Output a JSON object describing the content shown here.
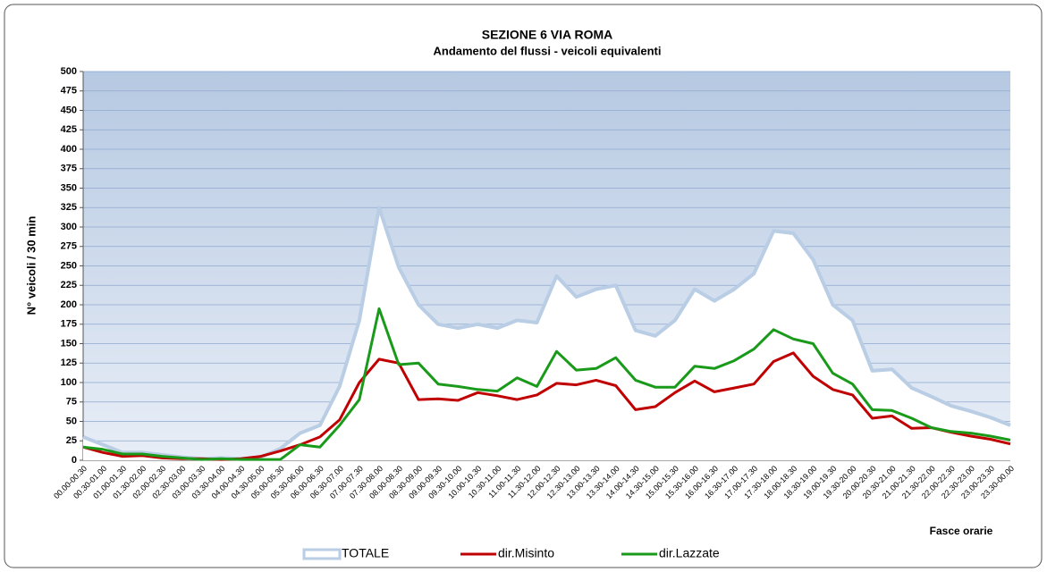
{
  "chart_data": {
    "type": "line",
    "title": "SEZIONE 6   VIA ROMA",
    "subtitle": "Andamento del flussi - veicoli equivalenti",
    "y_label": "N° veicoli / 30 min",
    "x_label": "Fasce orarie",
    "categories": [
      "00.00-00.30",
      "00.30-01.00",
      "01.00-01.30",
      "01.30-02.00",
      "02.00-02.30",
      "02.30-03.00",
      "03.00-03.30",
      "03.30-04.00",
      "04.00-04.30",
      "04.30-05.00",
      "05.00-05.30",
      "05.30-06.00",
      "06.00-06.30",
      "06.30-07.00",
      "07.00-07.30",
      "07.30-08.00",
      "08.00-08.30",
      "08.30-09.00",
      "09.00-09.30",
      "09.30-10.00",
      "10.00-10.30",
      "10.30-11.00",
      "11.00-11.30",
      "11.30-12.00",
      "12.00-12.30",
      "12.30-13.00",
      "13.00-13.30",
      "13.30-14.00",
      "14.00-14.30",
      "14.30-15.00",
      "15.00-15.30",
      "15.30-16.00",
      "16.00-16.30",
      "16.30-17.00",
      "17.00-17.30",
      "17.30-18.00",
      "18.00-18.30",
      "18.30-19.00",
      "19.00-19.30",
      "19.30-20.00",
      "20.00-20.30",
      "20.30-21.00",
      "21.00-21.30",
      "21.30-22.00",
      "22.00-22.30",
      "22.30-23.00",
      "23.00-23.30",
      "23.30-00.00"
    ],
    "series": [
      {
        "name": "TOTALE",
        "color": "#b9cde5",
        "area": true,
        "values": [
          30,
          20,
          10,
          10,
          7,
          4,
          2,
          3,
          2,
          4,
          15,
          35,
          45,
          95,
          180,
          325,
          248,
          200,
          175,
          170,
          175,
          170,
          180,
          177,
          237,
          210,
          220,
          225,
          167,
          160,
          180,
          220,
          205,
          220,
          240,
          295,
          292,
          258,
          200,
          180,
          115,
          117,
          93,
          82,
          70,
          63,
          55,
          45
        ]
      },
      {
        "name": "dir.Misinto",
        "color": "#c00000",
        "values": [
          17,
          10,
          5,
          6,
          3,
          2,
          2,
          1,
          2,
          5,
          12,
          20,
          30,
          52,
          100,
          130,
          125,
          78,
          79,
          77,
          87,
          83,
          78,
          84,
          99,
          97,
          103,
          96,
          65,
          69,
          87,
          102,
          88,
          93,
          98,
          127,
          138,
          108,
          91,
          84,
          54,
          57,
          41,
          42,
          36,
          31,
          27,
          21
        ]
      },
      {
        "name": "dir.Lazzate",
        "color": "#1a9a1a",
        "values": [
          17,
          14,
          8,
          8,
          5,
          3,
          1,
          2,
          1,
          1,
          1,
          20,
          17,
          45,
          78,
          195,
          123,
          125,
          98,
          95,
          91,
          89,
          106,
          95,
          140,
          116,
          118,
          132,
          103,
          94,
          94,
          121,
          118,
          128,
          143,
          168,
          156,
          150,
          112,
          98,
          65,
          64,
          54,
          42,
          37,
          35,
          31,
          26
        ]
      }
    ],
    "ylim": [
      0,
      500
    ],
    "yticks": [
      0,
      25,
      50,
      75,
      100,
      125,
      150,
      175,
      200,
      225,
      250,
      275,
      300,
      325,
      350,
      375,
      400,
      425,
      450,
      475,
      500
    ],
    "grid": true
  }
}
